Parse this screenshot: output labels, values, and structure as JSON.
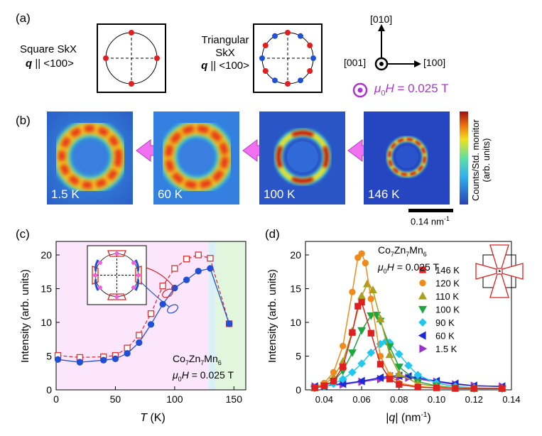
{
  "panel_a": {
    "label": "(a)",
    "square": {
      "title": "Square SkX",
      "q_sym": "q",
      "q_dir": "|| <100>"
    },
    "triangular": {
      "title1": "Triangular",
      "title2": "SkX",
      "q_sym": "q",
      "q_dir": "|| <100>"
    },
    "axes": {
      "up": "[010]",
      "left": "[001]",
      "right": "[100]"
    },
    "field": {
      "sym": "μ",
      "sub": "0",
      "H": "H",
      "value": "= 0.025 T",
      "color": "#b030d8"
    }
  },
  "panel_b": {
    "label": "(b)",
    "maps": [
      {
        "temp": "1.5 K"
      },
      {
        "temp": "60 K"
      },
      {
        "temp": "100 K"
      },
      {
        "temp": "146 K"
      }
    ],
    "colorbar_label1": "Counts/Std. monitor",
    "colorbar_label2": "(arb. units)",
    "scale_bar": "0.14 nm",
    "scale_exp": "-1"
  },
  "panel_c": {
    "label": "(c)",
    "legend_compound": "Co7Zn7Mn6",
    "legend_field": "= 0.025 T"
  },
  "panel_d": {
    "label": "(d)",
    "legend_compound": "Co7Zn7Mn6",
    "legend_field": "= 0.025 T"
  },
  "chart_data": [
    {
      "type": "line",
      "panel": "c",
      "xlabel": "T (K)",
      "ylabel": "Intensity (arb. units)",
      "xlim": [
        0,
        160
      ],
      "ylim": [
        0,
        22
      ],
      "xticks": [
        0,
        50,
        100,
        150
      ],
      "yticks": [
        0,
        5,
        10,
        15,
        20
      ],
      "series": [
        {
          "name": "red open squares",
          "color": "#e03030",
          "x": [
            1.5,
            20,
            40,
            50,
            60,
            70,
            80,
            90,
            100,
            110,
            120,
            130,
            146
          ],
          "y": [
            5.1,
            4.8,
            4.9,
            5.1,
            6.2,
            8.1,
            11.3,
            15.4,
            18.0,
            19.4,
            20.0,
            19.5,
            9.8
          ]
        },
        {
          "name": "blue filled circles",
          "color": "#1f4fd6",
          "x": [
            1.5,
            20,
            40,
            50,
            60,
            70,
            80,
            90,
            100,
            110,
            120,
            130,
            146
          ],
          "y": [
            4.5,
            4.1,
            4.4,
            4.6,
            5.4,
            7.0,
            9.7,
            12.7,
            15.1,
            16.3,
            17.6,
            18.0,
            9.8
          ]
        }
      ]
    },
    {
      "type": "line",
      "panel": "d",
      "xlabel": "|q| (nm-1)",
      "ylabel": "Intensity (arb. units)",
      "xlim": [
        0.03,
        0.14
      ],
      "ylim": [
        0,
        22
      ],
      "xticks": [
        0.04,
        0.06,
        0.08,
        0.1,
        0.12,
        0.14
      ],
      "yticks": [
        0,
        5,
        10,
        15,
        20
      ],
      "series": [
        {
          "name": "146 K",
          "marker": "square",
          "color": "#e02020",
          "x": [
            0.035,
            0.04,
            0.045,
            0.05,
            0.055,
            0.058,
            0.06,
            0.065,
            0.07,
            0.075,
            0.08,
            0.09,
            0.1,
            0.11,
            0.12,
            0.135
          ],
          "y": [
            0.3,
            0.6,
            1.3,
            3.4,
            8.5,
            12.4,
            13.0,
            8.4,
            3.8,
            1.6,
            0.8,
            0.4,
            0.3,
            0.2,
            0.2,
            0.2
          ]
        },
        {
          "name": "120 K",
          "marker": "circle",
          "color": "#f08a1a",
          "x": [
            0.035,
            0.04,
            0.045,
            0.05,
            0.055,
            0.058,
            0.06,
            0.062,
            0.065,
            0.07,
            0.075,
            0.08,
            0.09,
            0.1,
            0.11,
            0.12,
            0.135
          ],
          "y": [
            0.3,
            1.0,
            2.6,
            6.5,
            14.5,
            19.6,
            20.2,
            18.8,
            13.5,
            5.0,
            2.2,
            1.0,
            0.5,
            0.3,
            0.2,
            0.2,
            0.2
          ]
        },
        {
          "name": "110 K",
          "marker": "triangle-up",
          "color": "#a8a020",
          "x": [
            0.035,
            0.04,
            0.045,
            0.05,
            0.055,
            0.06,
            0.063,
            0.066,
            0.07,
            0.075,
            0.08,
            0.09,
            0.1,
            0.11,
            0.12,
            0.135
          ],
          "y": [
            0.3,
            0.8,
            1.9,
            4.2,
            8.7,
            13.9,
            15.7,
            14.8,
            10.5,
            5.2,
            2.4,
            0.9,
            0.5,
            0.3,
            0.2,
            0.2
          ]
        },
        {
          "name": "100 K",
          "marker": "triangle-down",
          "color": "#1ea640",
          "x": [
            0.035,
            0.04,
            0.045,
            0.05,
            0.055,
            0.06,
            0.065,
            0.068,
            0.07,
            0.075,
            0.08,
            0.09,
            0.1,
            0.11,
            0.12,
            0.135
          ],
          "y": [
            0.3,
            0.6,
            1.3,
            2.8,
            5.5,
            8.8,
            11.0,
            11.1,
            10.2,
            6.4,
            3.4,
            1.2,
            0.6,
            0.3,
            0.2,
            0.2
          ]
        },
        {
          "name": "90 K",
          "marker": "diamond",
          "color": "#20c8f0",
          "x": [
            0.035,
            0.04,
            0.045,
            0.05,
            0.055,
            0.06,
            0.065,
            0.07,
            0.073,
            0.075,
            0.08,
            0.085,
            0.09,
            0.1,
            0.11,
            0.12,
            0.135
          ],
          "y": [
            0.3,
            0.5,
            0.9,
            1.6,
            2.6,
            3.9,
            5.5,
            6.8,
            7.2,
            7.0,
            5.3,
            3.6,
            2.2,
            1.0,
            0.5,
            0.3,
            0.2
          ]
        },
        {
          "name": "60 K",
          "marker": "triangle-left",
          "color": "#1a2ad6",
          "x": [
            0.035,
            0.04,
            0.05,
            0.06,
            0.07,
            0.075,
            0.08,
            0.085,
            0.09,
            0.1,
            0.11,
            0.12,
            0.135
          ],
          "y": [
            0.5,
            0.6,
            0.9,
            1.3,
            1.8,
            2.0,
            2.1,
            2.0,
            1.8,
            1.3,
            0.9,
            0.6,
            0.5
          ]
        },
        {
          "name": "1.5 K",
          "marker": "triangle-right",
          "color": "#9a30d0",
          "x": [
            0.035,
            0.04,
            0.05,
            0.06,
            0.07,
            0.075,
            0.08,
            0.085,
            0.09,
            0.1,
            0.11,
            0.12,
            0.135
          ],
          "y": [
            0.5,
            0.6,
            0.8,
            1.2,
            1.6,
            1.8,
            1.9,
            1.8,
            1.6,
            1.2,
            0.8,
            0.6,
            0.5
          ]
        }
      ]
    }
  ]
}
